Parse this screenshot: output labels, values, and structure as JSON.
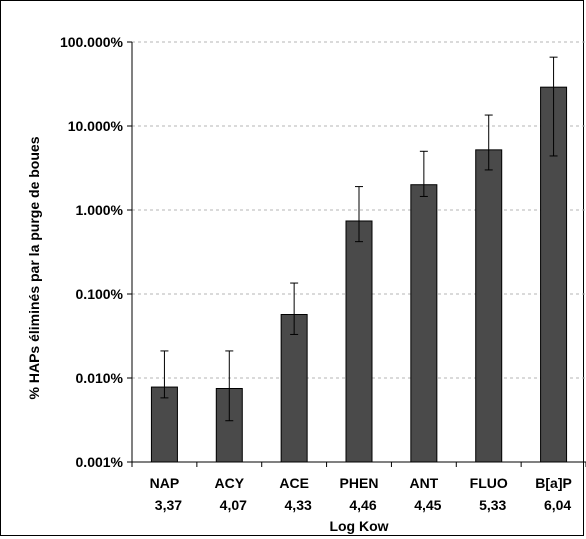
{
  "chart_data": {
    "type": "bar",
    "y_scale": "log",
    "ylim": [
      0.001,
      100
    ],
    "y_ticks": [
      0.001,
      0.01,
      0.1,
      1,
      10,
      100
    ],
    "y_tick_labels": [
      "0.001%",
      "0.010%",
      "0.100%",
      "1.000%",
      "10.000%",
      "100.000%"
    ],
    "ylabel": "% HAPs éliminés par la purge de boues",
    "xlabel": "Log Kow",
    "grid": true,
    "bar_color": "#4a4a4a",
    "categories": [
      "NAP",
      "ACY",
      "ACE",
      "PHEN",
      "ANT",
      "FLUO",
      "B[a]P"
    ],
    "log_kow": [
      "3,37",
      "4,07",
      "4,33",
      "4,46",
      "4,45",
      "5,33",
      "6,04"
    ],
    "values": [
      0.0078,
      0.0075,
      0.057,
      0.74,
      2.0,
      5.2,
      29
    ],
    "error_low": [
      0.0058,
      0.0031,
      0.033,
      0.42,
      1.45,
      3.0,
      4.4
    ],
    "error_high": [
      0.021,
      0.021,
      0.135,
      1.9,
      5.0,
      13.5,
      66
    ]
  }
}
